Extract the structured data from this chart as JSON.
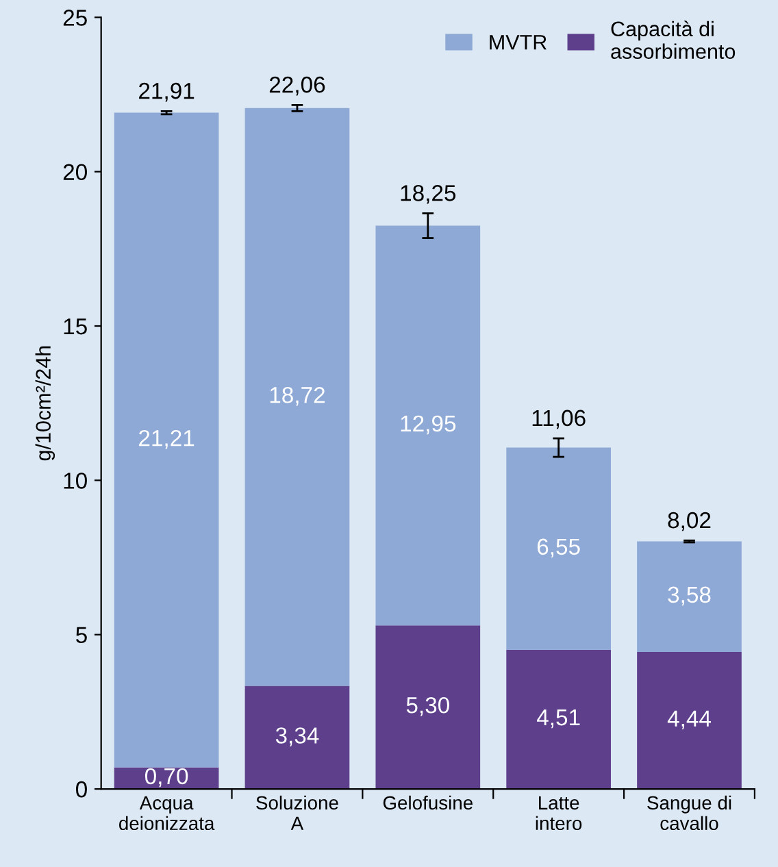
{
  "chart_data": {
    "type": "bar",
    "stacked": true,
    "ylabel": "g/10cm²/24h",
    "categories": [
      "Acqua\ndeionizzata",
      "Soluzione\nA",
      "Gelofusine",
      "Latte\nintero",
      "Sangue di\ncavallo"
    ],
    "series": [
      {
        "name": "Capacità di\nassorbimento",
        "color": "#5e3f8c",
        "values": [
          0.7,
          3.34,
          5.3,
          4.51,
          4.44
        ],
        "value_labels": [
          "0,70",
          "3,34",
          "5,30",
          "4,51",
          "4,44"
        ]
      },
      {
        "name": "MVTR",
        "color": "#8ea9d5",
        "values": [
          21.21,
          18.72,
          12.95,
          6.55,
          3.58
        ],
        "value_labels": [
          "21,21",
          "18,72",
          "12,95",
          "6,55",
          "3,58"
        ],
        "errors": [
          0.05,
          0.1,
          0.4,
          0.3,
          0.03
        ]
      }
    ],
    "totals": [
      "21,91",
      "22,06",
      "18,25",
      "11,06",
      "8,02"
    ],
    "ylim": [
      0,
      25
    ],
    "yticks": [
      0,
      5,
      10,
      15,
      20,
      25
    ],
    "grid": false,
    "legend": "top right"
  }
}
